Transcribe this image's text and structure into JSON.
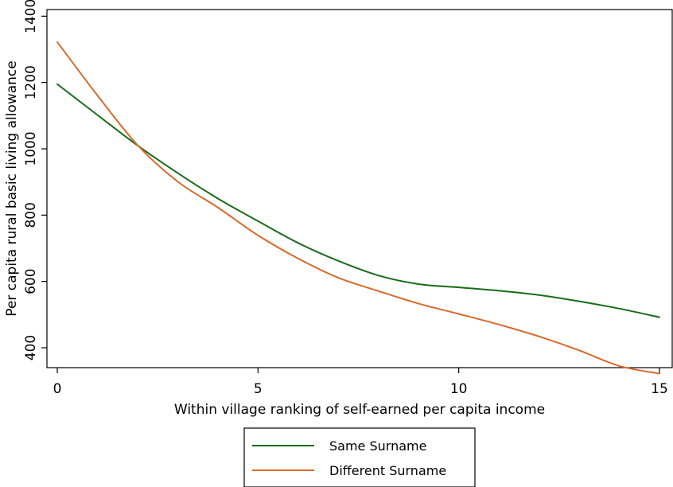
{
  "chart_data": {
    "type": "line",
    "xlabel": "Within village ranking of self-earned per capita income",
    "ylabel": "Per capita rural basic living allowance",
    "xlim": [
      0,
      15
    ],
    "ylim": [
      340,
      1420
    ],
    "xticks": [
      0,
      5,
      10,
      15
    ],
    "yticks": [
      400,
      600,
      800,
      1000,
      1200,
      1400
    ],
    "grid": false,
    "legend_position": "bottom",
    "series": [
      {
        "name": "Same Surname",
        "color": "#1a6b1a",
        "x": [
          0,
          1,
          2,
          3,
          4,
          5,
          6,
          7,
          8,
          9,
          10,
          11,
          12,
          13,
          14,
          15
        ],
        "values": [
          1195,
          1102,
          1010,
          927,
          850,
          782,
          716,
          662,
          618,
          592,
          582,
          572,
          559,
          540,
          518,
          492
        ]
      },
      {
        "name": "Different Surname",
        "color": "#d9692a",
        "x": [
          0,
          1,
          2,
          3,
          4,
          5,
          6,
          7,
          8,
          9,
          10,
          11,
          12,
          13,
          14,
          15
        ],
        "values": [
          1322,
          1161,
          1011,
          901,
          823,
          739,
          669,
          611,
          571,
          533,
          502,
          470,
          434,
          392,
          345,
          322
        ]
      }
    ]
  }
}
